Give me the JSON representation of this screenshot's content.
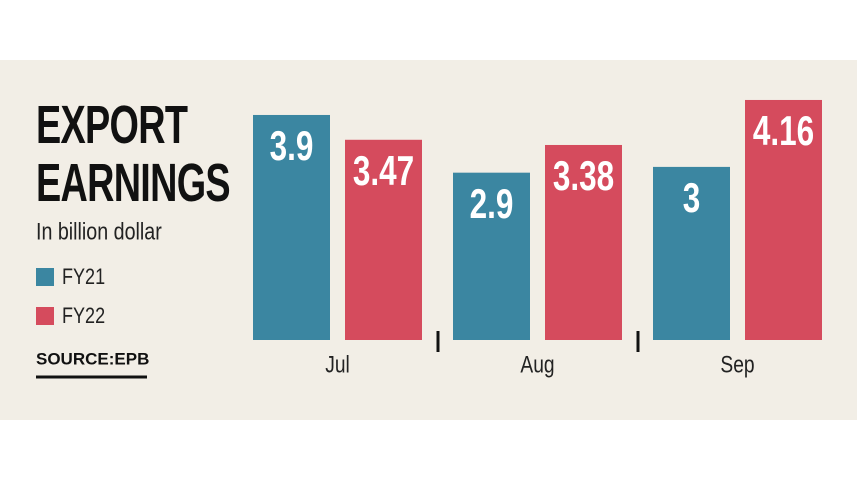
{
  "chart_data": {
    "type": "bar",
    "title": "EXPORT EARNINGS",
    "subtitle": "In billion dollar",
    "source": "SOURCE:EPB",
    "categories": [
      "Jul",
      "Aug",
      "Sep"
    ],
    "series": [
      {
        "name": "FY21",
        "color": "#3b86a1",
        "values": [
          3.9,
          2.9,
          3
        ]
      },
      {
        "name": "FY22",
        "color": "#d54b5d",
        "values": [
          3.47,
          3.38,
          4.16
        ]
      }
    ]
  }
}
